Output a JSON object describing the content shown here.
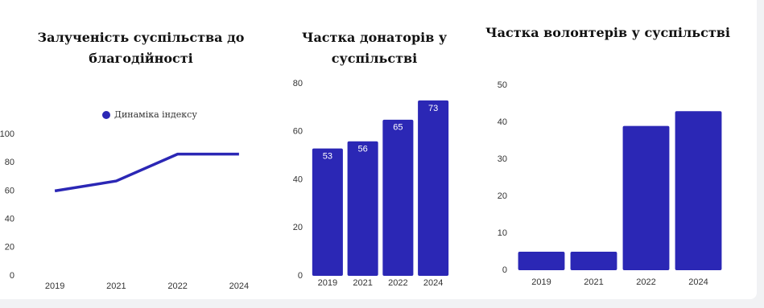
{
  "chart_data": [
    {
      "type": "line",
      "title": "Залученість суспільства до благодійності",
      "categories": [
        "2019",
        "2021",
        "2022",
        "2024"
      ],
      "series": [
        {
          "name": "Динаміка індексу",
          "color": "#2b27b5",
          "values": [
            60,
            67,
            86,
            86
          ]
        }
      ],
      "ylim": [
        0,
        100
      ],
      "yticks": [
        0,
        20,
        40,
        60,
        80,
        100
      ],
      "grid": false,
      "legend": "top"
    },
    {
      "type": "bar",
      "title": "Частка донаторів у суспільстві",
      "categories": [
        "2019",
        "2021",
        "2022",
        "2024"
      ],
      "values": [
        53,
        56,
        65,
        73
      ],
      "color": "#2b27b5",
      "ylim": [
        0,
        80
      ],
      "yticks": [
        0,
        20,
        40,
        60,
        80
      ],
      "grid": false,
      "value_labels_shown": true
    },
    {
      "type": "bar",
      "title": "Частка волонтерів у суспільстві",
      "categories": [
        "2019",
        "2021",
        "2022",
        "2024"
      ],
      "values": [
        5,
        5,
        39,
        43
      ],
      "color": "#2b27b5",
      "ylim": [
        0,
        50
      ],
      "yticks": [
        0,
        10,
        20,
        30,
        40,
        50
      ],
      "grid": false
    }
  ]
}
